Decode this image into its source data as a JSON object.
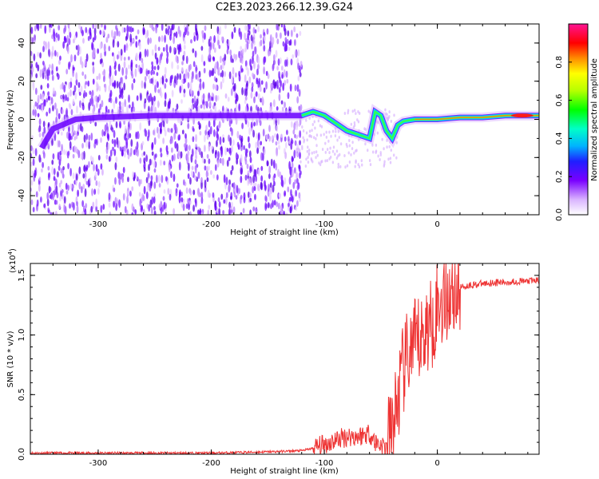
{
  "chart_data": [
    {
      "type": "heatmap",
      "title": "C2E3.2023.266.12.39.G24",
      "xlabel": "Height of straight line (km)",
      "ylabel": "Frequency (Hz)",
      "xlim": [
        -360,
        90
      ],
      "ylim": [
        -50,
        50
      ],
      "x_ticks": [
        "-300",
        "-200",
        "-100",
        "0"
      ],
      "y_ticks": [
        "-40",
        "-20",
        "0",
        "20",
        "40"
      ],
      "colorbar": {
        "label": "Normalized spectral amplitude",
        "range": [
          0,
          1
        ],
        "ticks": [
          "0.0",
          "0.2",
          "0.4",
          "0.6",
          "0.8"
        ],
        "colors": [
          "#ffffff",
          "#d9b3ff",
          "#7a00ff",
          "#1f1fff",
          "#00b3ff",
          "#00ffc8",
          "#00ff00",
          "#b6ff00",
          "#ffff00",
          "#ff8c00",
          "#ff0000",
          "#ff1493"
        ]
      },
      "features": {
        "main_line": [
          [
            -350,
            -15
          ],
          [
            -340,
            -5
          ],
          [
            -320,
            0
          ],
          [
            -300,
            1
          ],
          [
            -250,
            2
          ],
          [
            -200,
            2
          ],
          [
            -150,
            2
          ],
          [
            -120,
            2
          ],
          [
            -110,
            4
          ],
          [
            -100,
            2
          ],
          [
            -90,
            -2
          ],
          [
            -80,
            -6
          ],
          [
            -70,
            -8
          ],
          [
            -60,
            -10
          ],
          [
            -55,
            4
          ],
          [
            -50,
            2
          ],
          [
            -45,
            -6
          ],
          [
            -40,
            -10
          ],
          [
            -35,
            -3
          ],
          [
            -30,
            -1
          ],
          [
            -20,
            0
          ],
          [
            -10,
            0
          ],
          [
            0,
            0
          ],
          [
            20,
            1
          ],
          [
            40,
            1
          ],
          [
            60,
            2
          ],
          [
            90,
            2
          ]
        ],
        "scatter_region_x": [
          -360,
          -120
        ]
      }
    },
    {
      "type": "line",
      "xlabel": "Height of straight line (km)",
      "ylabel": "SNR (10 * v/v)",
      "y_scale_label": "(x10",
      "y_scale_exp": "4",
      "y_scale_suffix": ")",
      "xlim": [
        -360,
        90
      ],
      "ylim": [
        0,
        1.6
      ],
      "x_ticks": [
        "-300",
        "-200",
        "-100",
        "0"
      ],
      "y_ticks": [
        "0.0",
        "0.5",
        "1.0",
        "1.5"
      ],
      "line_color": "#ee3333",
      "series": [
        {
          "x": [
            -360,
            -300,
            -250,
            -200,
            -150,
            -120,
            -110,
            -100,
            -90,
            -80,
            -70,
            -60,
            -55,
            -50,
            -45,
            -40,
            -35,
            -30,
            -25,
            -20,
            -15,
            -10,
            -5,
            0,
            5,
            10,
            20,
            30,
            40,
            50,
            60,
            70,
            80,
            90
          ],
          "values": [
            0.01,
            0.01,
            0.01,
            0.01,
            0.02,
            0.03,
            0.05,
            0.08,
            0.12,
            0.15,
            0.15,
            0.18,
            0.1,
            0.08,
            0.06,
            0.2,
            0.45,
            0.7,
            0.85,
            0.9,
            0.95,
            1.05,
            1.1,
            1.25,
            1.3,
            1.35,
            1.4,
            1.42,
            1.43,
            1.44,
            1.44,
            1.45,
            1.45,
            1.46
          ]
        }
      ]
    }
  ]
}
